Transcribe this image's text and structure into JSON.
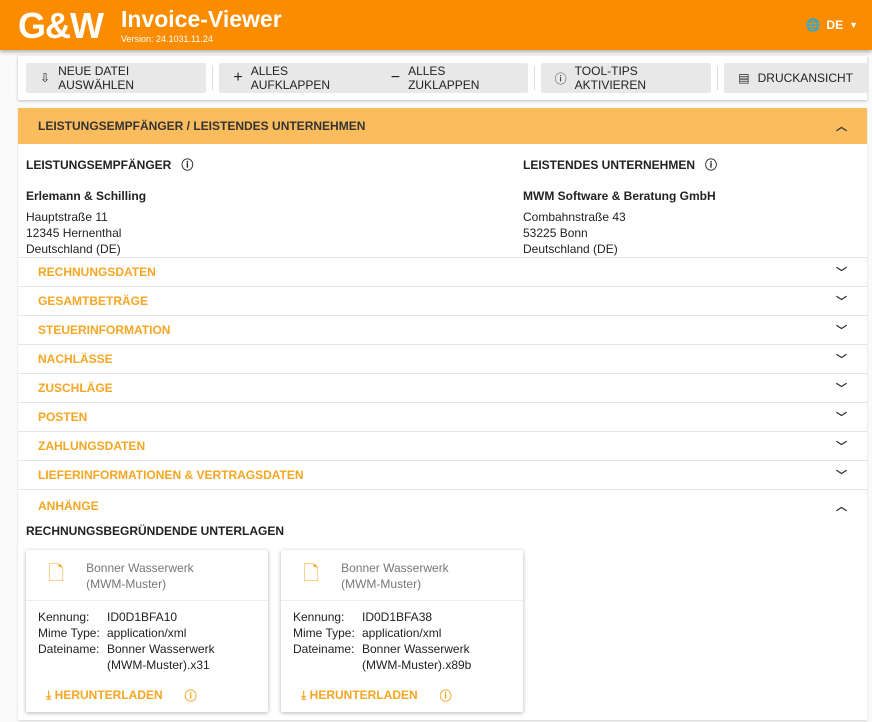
{
  "header": {
    "logo": "G&W",
    "title": "Invoice-Viewer",
    "version": "Version: 24.1031.11.24",
    "language": "DE"
  },
  "toolbar": {
    "new_file": "NEUE DATEI AUSWÄHLEN",
    "expand_all": "ALLES AUFKLAPPEN",
    "collapse_all": "ALLES ZUKLAPPEN",
    "tooltips": "TOOL-TIPS AKTIVIEREN",
    "print": "DRUCKANSICHT"
  },
  "parties": {
    "section_title": "LEISTUNGSEMPFÄNGER / LEISTENDES UNTERNEHMEN",
    "recipient": {
      "heading": "LEISTUNGSEMPFÄNGER",
      "name": "Erlemann & Schilling",
      "street": "Hauptstraße 11",
      "city": "12345 Hernenthal",
      "country": "Deutschland (DE)"
    },
    "provider": {
      "heading": "LEISTENDES UNTERNEHMEN",
      "name": "MWM Software & Beratung GmbH",
      "street": "Combahnstraße 43",
      "city": "53225 Bonn",
      "country": "Deutschland (DE)"
    }
  },
  "sections": [
    "RECHNUNGSDATEN",
    "GESAMTBETRÄGE",
    "STEUERINFORMATION",
    "NACHLÄSSE",
    "ZUSCHLÄGE",
    "POSTEN",
    "ZAHLUNGSDATEN",
    "LIEFERINFORMATIONEN & VERTRAGSDATEN"
  ],
  "attachments": {
    "title": "ANHÄNGE",
    "subtitle": "RECHNUNGSBEGRÜNDENDE UNTERLAGEN",
    "labels": {
      "id": "Kennung:",
      "mime": "Mime Type:",
      "filename": "Dateiname:",
      "download": "HERUNTERLADEN"
    },
    "items": [
      {
        "title": "Bonner Wasserwerk (MWM-Muster)",
        "id": "ID0D1BFA10",
        "mime": "application/xml",
        "filename": "Bonner Wasserwerk (MWM-Muster).x31"
      },
      {
        "title": "Bonner Wasserwerk (MWM-Muster)",
        "id": "ID0D1BFA38",
        "mime": "application/xml",
        "filename": "Bonner Wasserwerk (MWM-Muster).x89b"
      }
    ]
  },
  "colors": {
    "brand": "#fb8c00",
    "section_header": "#fbbc5d",
    "accent_text": "#f5a623"
  }
}
